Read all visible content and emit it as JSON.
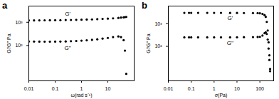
{
  "chart_data": [
    {
      "type": "scatter",
      "title": "a",
      "x_label": "ω(rad s⁻¹)",
      "y_label": "G'/G'' Pa",
      "log": true,
      "marker": "circle",
      "xlim": [
        0.01,
        100
      ],
      "xticks": [
        0.01,
        0.1,
        1,
        10
      ],
      "ylim": [
        3,
        5000
      ],
      "yticks": [
        {
          "value": 100,
          "label": "10²"
        },
        {
          "value": 1000,
          "label": "10³"
        }
      ],
      "x": [
        0.01,
        0.0158,
        0.0251,
        0.0398,
        0.0631,
        0.1,
        0.158,
        0.251,
        0.398,
        0.631,
        1,
        1.58,
        2.51,
        3.98,
        6.31,
        10,
        15.8,
        25.1,
        31.6,
        39.8,
        44.7,
        50.1
      ],
      "series": [
        {
          "name": "G'",
          "color": "#000000",
          "values": [
            1200,
            1205,
            1210,
            1215,
            1220,
            1230,
            1240,
            1250,
            1260,
            1275,
            1290,
            1310,
            1330,
            1360,
            1390,
            1430,
            1480,
            1540,
            1590,
            1640,
            1670,
            1700
          ]
        },
        {
          "name": "G''",
          "color": "#000000",
          "values": [
            150,
            148,
            147,
            146,
            146,
            147,
            148,
            150,
            153,
            157,
            162,
            168,
            175,
            185,
            198,
            212,
            230,
            245,
            230,
            170,
            60,
            6
          ]
        }
      ],
      "annotations": [
        {
          "text": "G'",
          "x": 0.3,
          "y": 2300
        },
        {
          "text": "G''",
          "x": 0.3,
          "y": 80
        }
      ]
    },
    {
      "type": "scatter",
      "title": "b",
      "x_label": "σ(Pa)",
      "y_label": "G'/G'' Pa",
      "log": true,
      "marker": "circle",
      "xlim": [
        0.01,
        400
      ],
      "xticks": [
        0.01,
        0.1,
        1,
        10,
        100
      ],
      "ylim": [
        3,
        6000
      ],
      "yticks": [
        {
          "value": 100,
          "label": "10²"
        },
        {
          "value": 1000,
          "label": "10³"
        }
      ],
      "x": [
        0.05,
        0.08,
        0.1,
        0.2,
        0.5,
        1,
        2,
        5,
        10,
        20,
        50,
        80,
        100,
        130,
        160,
        180,
        200,
        220,
        240,
        260,
        280
      ],
      "series": [
        {
          "name": "G'",
          "color": "#000000",
          "values": [
            3000,
            3000,
            3000,
            3000,
            3000,
            3000,
            2990,
            2980,
            2970,
            2960,
            2950,
            2920,
            2880,
            2700,
            2400,
            2000,
            1200,
            500,
            150,
            40,
            10
          ]
        },
        {
          "name": "G''",
          "color": "#000000",
          "values": [
            250,
            250,
            250,
            250,
            250,
            250,
            250,
            250,
            252,
            254,
            256,
            258,
            262,
            300,
            380,
            420,
            350,
            200,
            80,
            25,
            8
          ]
        }
      ],
      "annotations": [
        {
          "text": "G'",
          "x": 5,
          "y": 1800
        },
        {
          "text": "G''",
          "x": 5,
          "y": 140
        }
      ]
    }
  ]
}
